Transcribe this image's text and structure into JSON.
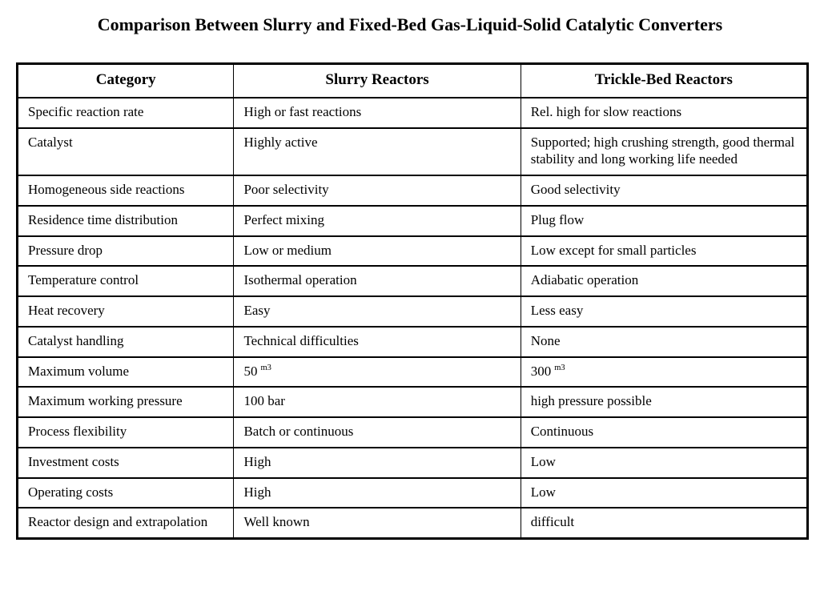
{
  "slide": {
    "title": "Comparison Between Slurry and Fixed-Bed Gas-Liquid-Solid Catalytic Converters"
  },
  "table": {
    "headers": [
      "Category",
      "Slurry Reactors",
      "Trickle-Bed Reactors"
    ],
    "rows": [
      [
        "Specific reaction rate",
        "High or fast reactions",
        "Rel. high for slow reactions"
      ],
      [
        "Catalyst",
        "Highly active",
        "Supported; high crushing strength, good thermal stability and long working life needed"
      ],
      [
        "Homogeneous side reactions",
        "Poor selectivity",
        "Good selectivity"
      ],
      [
        "Residence time distribution",
        "Perfect mixing",
        "Plug flow"
      ],
      [
        "Pressure drop",
        "Low or medium",
        "Low except for small particles"
      ],
      [
        "Temperature control",
        "Isothermal operation",
        "Adiabatic operation"
      ],
      [
        "Heat recovery",
        "Easy",
        "Less easy"
      ],
      [
        "Catalyst handling",
        "Technical difficulties",
        "None"
      ],
      [
        "Maximum volume",
        {
          "text": "50",
          "sup": "m3"
        },
        {
          "text": "300",
          "sup": "m3"
        }
      ],
      [
        "Maximum working pressure",
        "100 bar",
        "high pressure possible"
      ],
      [
        "Process flexibility",
        "Batch or continuous",
        "Continuous"
      ],
      [
        "Investment costs",
        "High",
        "Low"
      ],
      [
        "Operating costs",
        "High",
        "Low"
      ],
      [
        "Reactor design and extrapolation",
        "Well known",
        "difficult"
      ]
    ]
  },
  "colors": {
    "background": "#ffffff",
    "text": "#000000",
    "border": "#000000"
  }
}
